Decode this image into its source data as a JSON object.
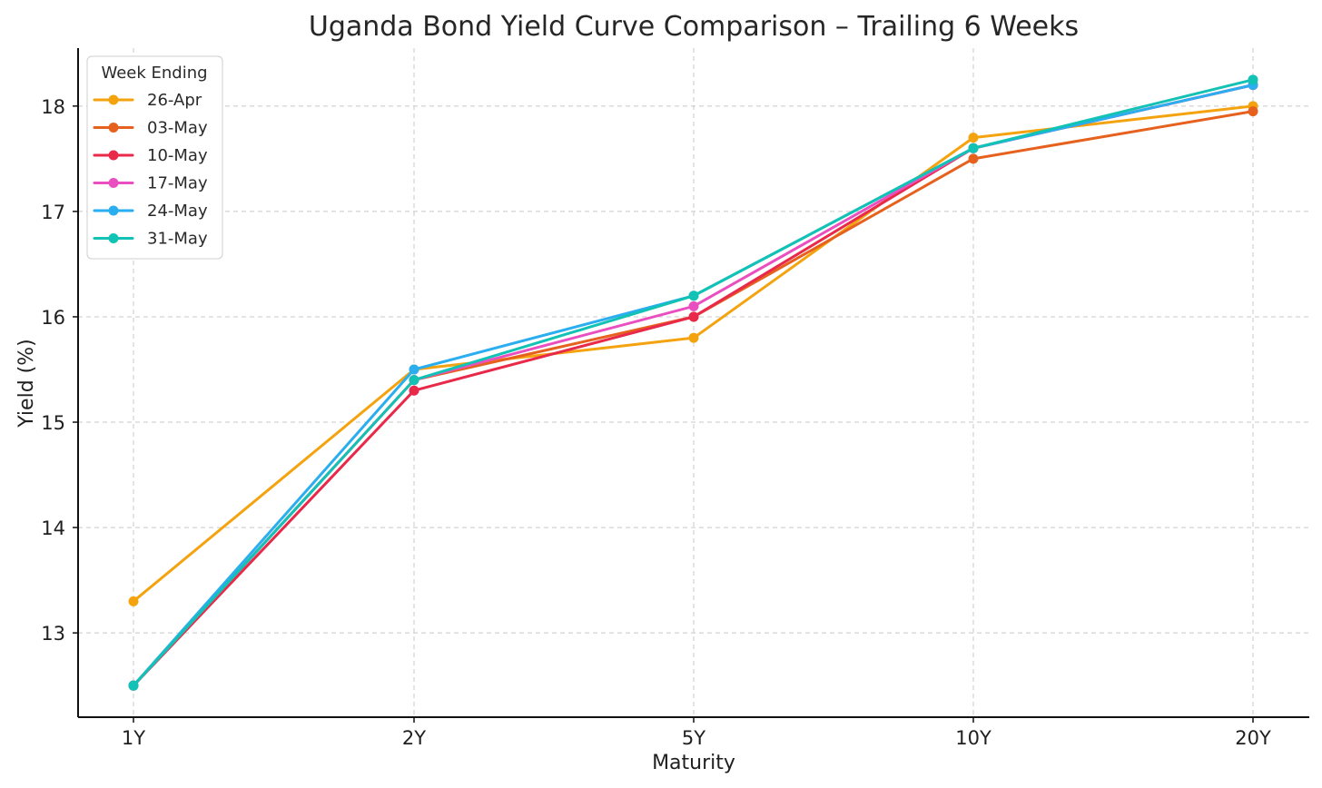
{
  "chart_data": {
    "type": "line",
    "title": "Uganda Bond Yield Curve Comparison – Trailing 6 Weeks",
    "xlabel": "Maturity",
    "ylabel": "Yield (%)",
    "categories": [
      "1Y",
      "2Y",
      "5Y",
      "10Y",
      "20Y"
    ],
    "y_ticks": [
      13,
      14,
      15,
      16,
      17,
      18
    ],
    "ylim": [
      12.2,
      18.55
    ],
    "grid": true,
    "legend": {
      "title": "Week Ending",
      "placement": "top-left"
    },
    "series": [
      {
        "name": "26-Apr",
        "color": "#f4a30e",
        "values": [
          13.3,
          15.5,
          15.8,
          17.7,
          18.0
        ]
      },
      {
        "name": "03-May",
        "color": "#e6611e",
        "values": [
          12.5,
          15.4,
          16.0,
          17.5,
          17.95
        ]
      },
      {
        "name": "10-May",
        "color": "#e8294a",
        "values": [
          12.5,
          15.3,
          16.0,
          17.6,
          18.2
        ]
      },
      {
        "name": "17-May",
        "color": "#ea4fc0",
        "values": [
          12.5,
          15.4,
          16.1,
          17.6,
          18.2
        ]
      },
      {
        "name": "24-May",
        "color": "#2aaef0",
        "values": [
          12.5,
          15.5,
          16.2,
          17.6,
          18.2
        ]
      },
      {
        "name": "31-May",
        "color": "#12c2b4",
        "values": [
          12.5,
          15.4,
          16.2,
          17.6,
          18.25
        ]
      }
    ]
  }
}
